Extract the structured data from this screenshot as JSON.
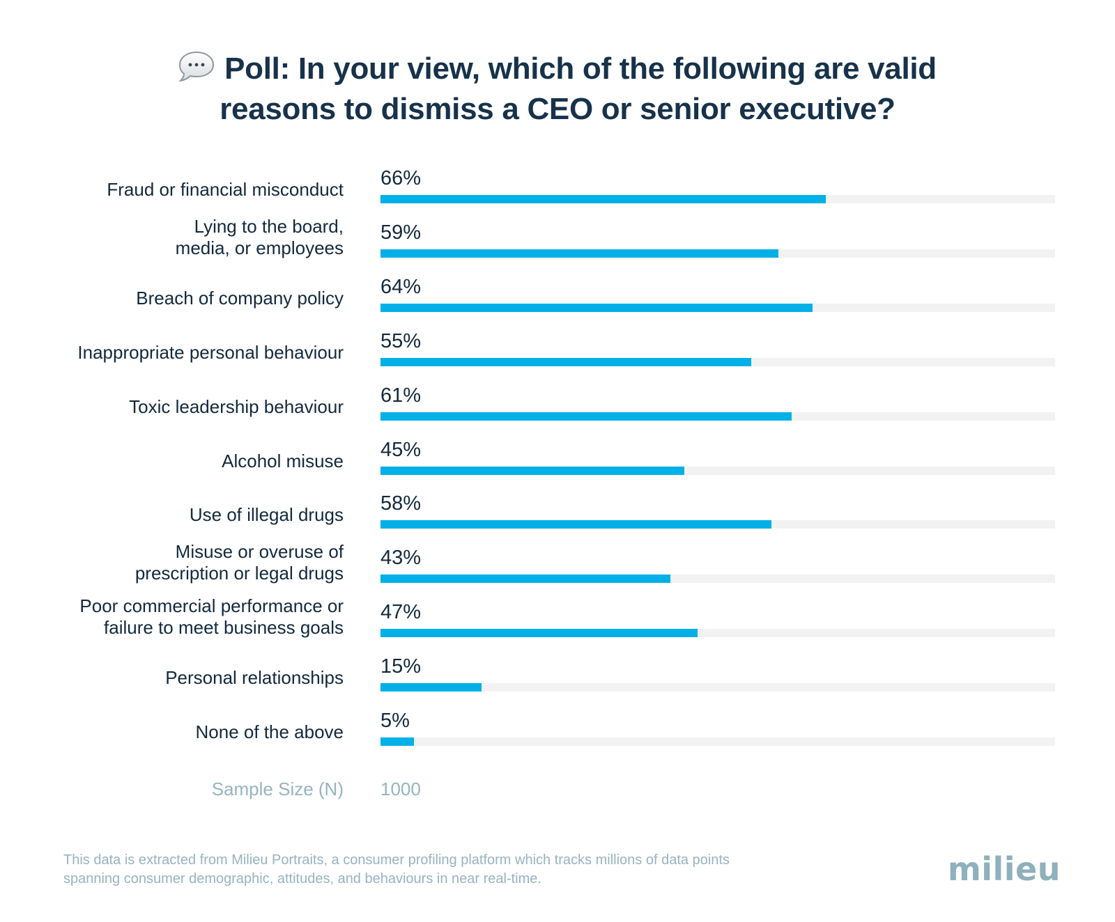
{
  "title_lines": [
    "Poll: In your view, which of the following are valid",
    "reasons to dismiss a CEO or senior executive?"
  ],
  "chart_data": {
    "type": "bar",
    "orientation": "horizontal",
    "title": "Poll: In your view, which of the following are valid reasons to dismiss a CEO or senior executive?",
    "categories": [
      [
        "Fraud or financial misconduct"
      ],
      [
        "Lying to the board,",
        "media, or employees"
      ],
      [
        "Breach of company policy"
      ],
      [
        "Inappropriate personal behaviour"
      ],
      [
        "Toxic leadership behaviour"
      ],
      [
        "Alcohol misuse"
      ],
      [
        "Use of illegal drugs"
      ],
      [
        "Misuse or overuse of",
        "prescription or legal drugs"
      ],
      [
        "Poor commercial performance or",
        "failure to meet business goals"
      ],
      [
        "Personal relationships"
      ],
      [
        "None of the above"
      ]
    ],
    "values": [
      66,
      59,
      64,
      55,
      61,
      45,
      58,
      43,
      47,
      15,
      5
    ],
    "value_labels": [
      "66%",
      "59%",
      "64%",
      "55%",
      "61%",
      "45%",
      "58%",
      "43%",
      "47%",
      "15%",
      "5%"
    ],
    "xlim": [
      0,
      100
    ],
    "grid": false,
    "bar_color": "#00b0e6",
    "track_color": "#f2f2f2"
  },
  "sample": {
    "label": "Sample Size (N)",
    "value": "1000"
  },
  "footnote_lines": [
    "This data is extracted from Milieu Portraits, a consumer profiling platform which tracks millions of data points",
    "spanning consumer demographic, attitudes, and behaviours in near real-time."
  ],
  "logo_text": "milieu",
  "icons": {
    "title": "speech-bubble-icon"
  }
}
